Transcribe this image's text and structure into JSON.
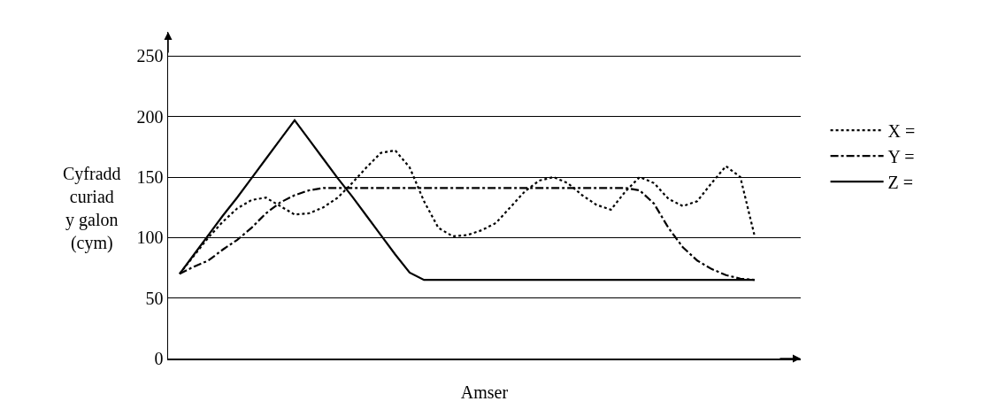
{
  "chart_data": {
    "type": "line",
    "xlabel": "Amser",
    "ylabel": "Cyfradd\ncuriad\ny galon\n(cym)",
    "categories": [
      null,
      null,
      null,
      null,
      null,
      null,
      null,
      null,
      null,
      null,
      null,
      null,
      null,
      null,
      null,
      null,
      null,
      null,
      null,
      null,
      null,
      null,
      null,
      null,
      null,
      null,
      null,
      null,
      null,
      null,
      null,
      null,
      null,
      null,
      null,
      null,
      null,
      null,
      null,
      null,
      null
    ],
    "series": [
      {
        "name": "X =",
        "color": "#000000",
        "line_style": "dotted",
        "values": [
          70,
          85,
          100,
          113,
          124,
          131,
          133,
          126,
          119,
          120,
          125,
          133,
          145,
          158,
          170,
          172,
          158,
          130,
          108,
          101,
          102,
          106,
          112,
          125,
          138,
          147,
          150,
          145,
          135,
          127,
          123,
          138,
          150,
          145,
          132,
          126,
          130,
          145,
          159,
          150,
          101
        ]
      },
      {
        "name": "Y =",
        "color": "#000000",
        "line_style": "dashdot",
        "values": [
          70,
          76,
          81,
          90,
          98,
          108,
          120,
          129,
          135,
          139,
          141,
          141,
          141,
          141,
          141,
          141,
          141,
          141,
          141,
          141,
          141,
          141,
          141,
          141,
          141,
          141,
          141,
          141,
          141,
          141,
          141,
          141,
          139,
          128,
          108,
          92,
          81,
          74,
          69,
          66,
          65
        ]
      },
      {
        "name": "Z =",
        "color": "#000000",
        "line_style": "solid",
        "values": [
          70,
          86,
          102,
          118,
          133,
          149,
          165,
          181,
          197,
          181,
          165,
          149,
          134,
          118,
          102,
          86,
          71,
          65,
          65,
          65,
          65,
          65,
          65,
          65,
          65,
          65,
          65,
          65,
          65,
          65,
          65,
          65,
          65,
          65,
          65,
          65,
          65,
          65,
          65,
          65,
          65
        ]
      }
    ],
    "ylim": [
      0,
      270
    ],
    "yticks": [
      0,
      50,
      100,
      150,
      200,
      250
    ],
    "grid": "y",
    "legend": "right",
    "marker": "none",
    "tick_labels": "y"
  }
}
